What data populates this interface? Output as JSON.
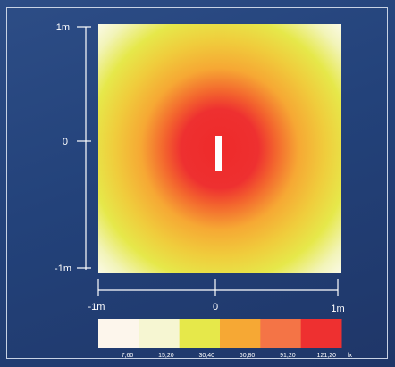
{
  "chart_data": {
    "type": "heatmap",
    "title": "",
    "xlabel": "",
    "ylabel": "",
    "x_ticks": [
      "-1m",
      "0",
      "1m"
    ],
    "y_ticks": [
      "1m",
      "0",
      "-1m"
    ],
    "xlim": [
      -1,
      1
    ],
    "ylim": [
      -1,
      1
    ],
    "units": "m",
    "center_label": "I",
    "illuminance_range": [
      7.6,
      121.2
    ],
    "legend": {
      "unit": "lx",
      "levels": [
        "7,60",
        "15,20",
        "30,40",
        "60,80",
        "91,20",
        "121,20"
      ],
      "colors": [
        "#fdf6ec",
        "#f6f6d2",
        "#e6e84a",
        "#f6a834",
        "#f47446",
        "#ee3030"
      ]
    }
  }
}
